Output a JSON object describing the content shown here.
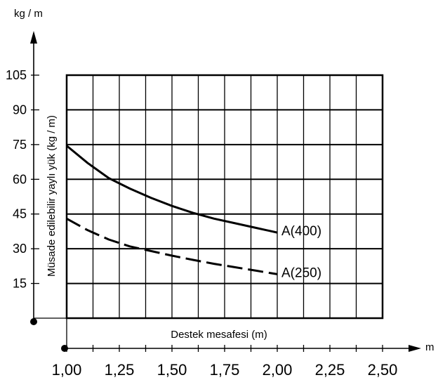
{
  "chart_data": {
    "type": "line",
    "y_unit": "kg / m",
    "x_unit": "m",
    "xlabel": "Destek mesafesi (m)",
    "ylabel": "Müsade edilebilir yaylı yük (kg / m)",
    "x_ticks": [
      "1,00",
      "1,25",
      "1,50",
      "1,75",
      "2,00",
      "2,25",
      "2,50"
    ],
    "y_ticks": [
      "15",
      "30",
      "45",
      "60",
      "75",
      "90",
      "105"
    ],
    "xlim": [
      1.0,
      2.5
    ],
    "ylim": [
      0,
      105
    ],
    "grid": true,
    "series": [
      {
        "name": "A(400)",
        "style": "solid",
        "x": [
          1.0,
          1.1,
          1.2,
          1.3,
          1.4,
          1.5,
          1.6,
          1.7,
          1.8,
          1.9,
          2.0
        ],
        "y": [
          74.5,
          67,
          60.5,
          56,
          52,
          48.5,
          45.5,
          43,
          41,
          39,
          37
        ]
      },
      {
        "name": "A(250)",
        "style": "dashed",
        "x": [
          1.0,
          1.1,
          1.2,
          1.3,
          1.4,
          1.5,
          1.6,
          1.7,
          1.8,
          1.9,
          2.0
        ],
        "y": [
          43,
          38,
          34,
          31,
          29,
          27,
          25.2,
          23.5,
          22,
          20.5,
          19
        ]
      }
    ]
  }
}
